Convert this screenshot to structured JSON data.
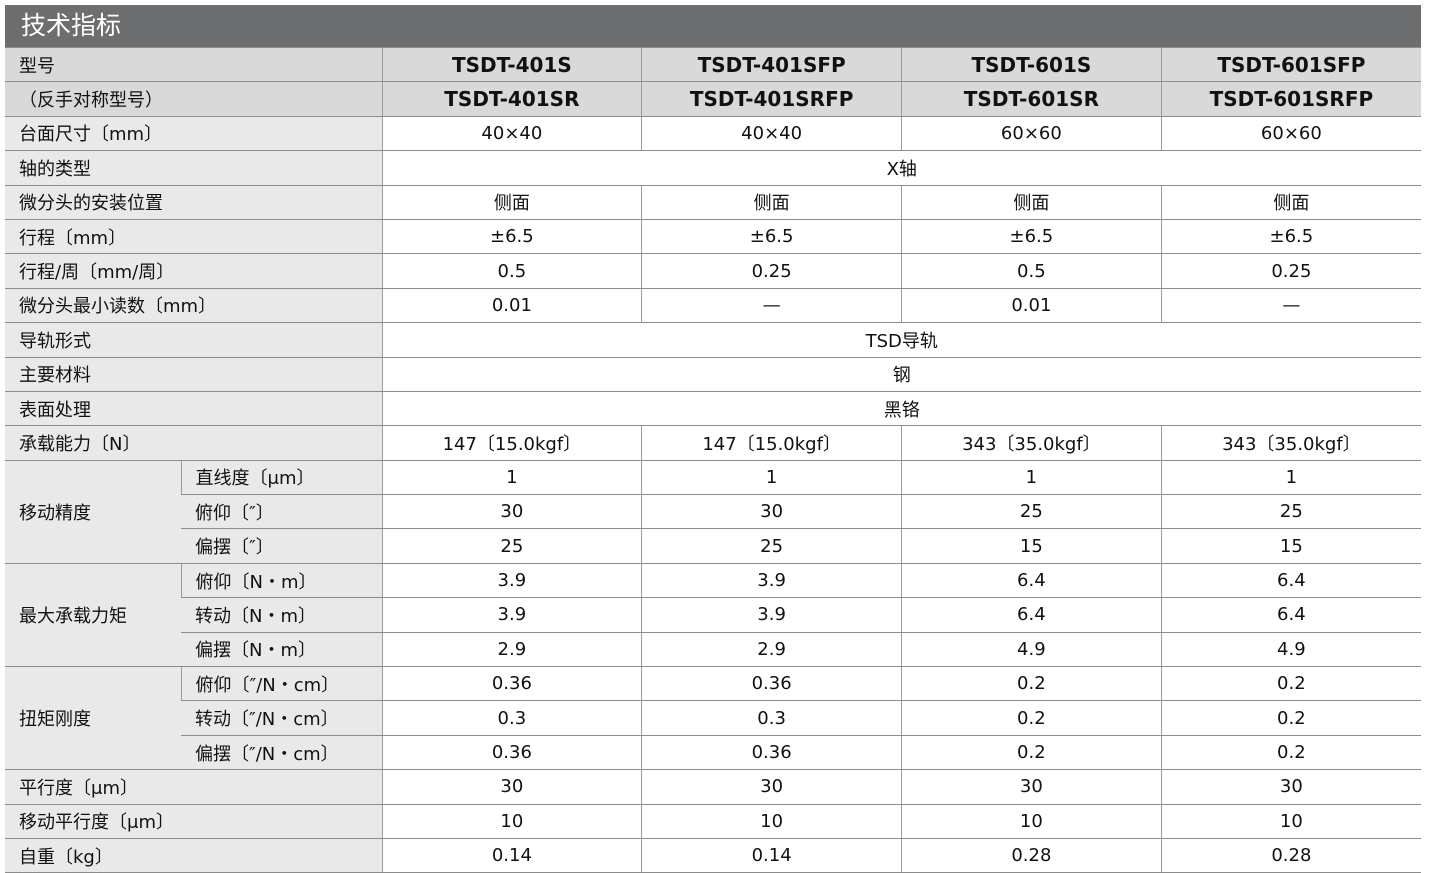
{
  "header": {
    "title": "技术指标"
  },
  "table": {
    "model_label": "型号",
    "models": [
      "TSDT-401S",
      "TSDT-401SFP",
      "TSDT-601S",
      "TSDT-601SFP"
    ],
    "mirror_label": "（反手对称型号）",
    "mirror_models": [
      "TSDT-401SR",
      "TSDT-401SRFP",
      "TSDT-601SR",
      "TSDT-601SRFP"
    ],
    "sections": [
      {
        "label": "台面尺寸〔mm〕",
        "values": [
          "40×40",
          "40×40",
          "60×60",
          "60×60"
        ]
      },
      {
        "label": "轴的类型",
        "values": [
          "X轴"
        ]
      },
      {
        "label": "微分头的安装位置",
        "values": [
          "侧面",
          "侧面",
          "侧面",
          "侧面"
        ]
      },
      {
        "label": "行程〔mm〕",
        "values": [
          "±6.5",
          "±6.5",
          "±6.5",
          "±6.5"
        ]
      },
      {
        "label": "行程/周〔mm/周〕",
        "values": [
          "0.5",
          "0.25",
          "0.5",
          "0.25"
        ]
      },
      {
        "label": "微分头最小读数〔mm〕",
        "values": [
          "0.01",
          "—",
          "0.01",
          "—"
        ]
      },
      {
        "label": "导轨形式",
        "values": [
          "TSD导轨"
        ]
      },
      {
        "label": "主要材料",
        "values": [
          "钢"
        ]
      },
      {
        "label": "表面处理",
        "values": [
          "黑铬"
        ]
      },
      {
        "label": "承载能力〔N〕",
        "values": [
          "147〔15.0kgf〕",
          "147〔15.0kgf〕",
          "343〔35.0kgf〕",
          "343〔35.0kgf〕"
        ]
      },
      {
        "label": "移动精度",
        "rows": [
          {
            "label": "直线度〔μm〕",
            "values": [
              "1",
              "1",
              "1",
              "1"
            ]
          },
          {
            "label": "俯仰〔″〕",
            "values": [
              "30",
              "30",
              "25",
              "25"
            ]
          },
          {
            "label": "偏摆〔″〕",
            "values": [
              "25",
              "25",
              "15",
              "15"
            ]
          }
        ]
      },
      {
        "label": "最大承载力矩",
        "rows": [
          {
            "label": "俯仰〔N・m〕",
            "values": [
              "3.9",
              "3.9",
              "6.4",
              "6.4"
            ]
          },
          {
            "label": "转动〔N・m〕",
            "values": [
              "3.9",
              "3.9",
              "6.4",
              "6.4"
            ]
          },
          {
            "label": "偏摆〔N・m〕",
            "values": [
              "2.9",
              "2.9",
              "4.9",
              "4.9"
            ]
          }
        ]
      },
      {
        "label": "扭矩刚度",
        "rows": [
          {
            "label": "俯仰〔″/N・cm〕",
            "values": [
              "0.36",
              "0.36",
              "0.2",
              "0.2"
            ]
          },
          {
            "label": "转动〔″/N・cm〕",
            "values": [
              "0.3",
              "0.3",
              "0.2",
              "0.2"
            ]
          },
          {
            "label": "偏摆〔″/N・cm〕",
            "values": [
              "0.36",
              "0.36",
              "0.2",
              "0.2"
            ]
          }
        ]
      },
      {
        "label": "平行度〔μm〕",
        "values": [
          "30",
          "30",
          "30",
          "30"
        ]
      },
      {
        "label": "移动平行度〔μm〕",
        "values": [
          "10",
          "10",
          "10",
          "10"
        ]
      },
      {
        "label": "自重〔kg〕",
        "values": [
          "0.14",
          "0.14",
          "0.28",
          "0.28"
        ]
      }
    ]
  }
}
